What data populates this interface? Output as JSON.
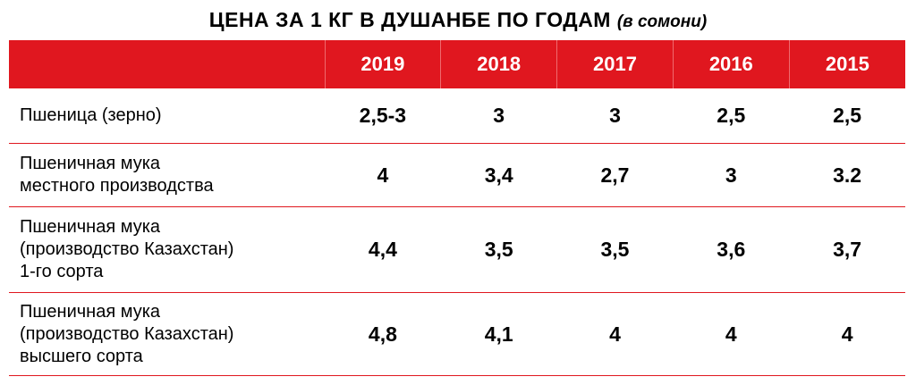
{
  "title": {
    "main": "ЦЕНА ЗА 1 КГ В ДУШАНБЕ ПО ГОДАМ",
    "unit": "(в сомони)"
  },
  "table": {
    "header_blank": "",
    "years": [
      "2019",
      "2018",
      "2017",
      "2016",
      "2015"
    ],
    "rows": [
      {
        "label_lines": [
          "Пшеница (зерно)"
        ],
        "values": [
          "2,5-3",
          "3",
          "3",
          "2,5",
          "2,5"
        ]
      },
      {
        "label_lines": [
          "Пшеничная мука",
          "местного производства"
        ],
        "values": [
          "4",
          "3,4",
          "2,7",
          "3",
          "3.2"
        ]
      },
      {
        "label_lines": [
          "Пшеничная мука",
          "(производство Казахстан)",
          "1-го сорта"
        ],
        "values": [
          "4,4",
          "3,5",
          "3,5",
          "3,6",
          "3,7"
        ]
      },
      {
        "label_lines": [
          "Пшеничная мука",
          "(производство Казахстан)",
          "высшего сорта"
        ],
        "values": [
          "4,8",
          "4,1",
          "4",
          "4",
          "4"
        ]
      }
    ]
  },
  "colors": {
    "header_bg": "#e0171f",
    "header_text": "#ffffff",
    "row_divider": "#e0171f"
  }
}
